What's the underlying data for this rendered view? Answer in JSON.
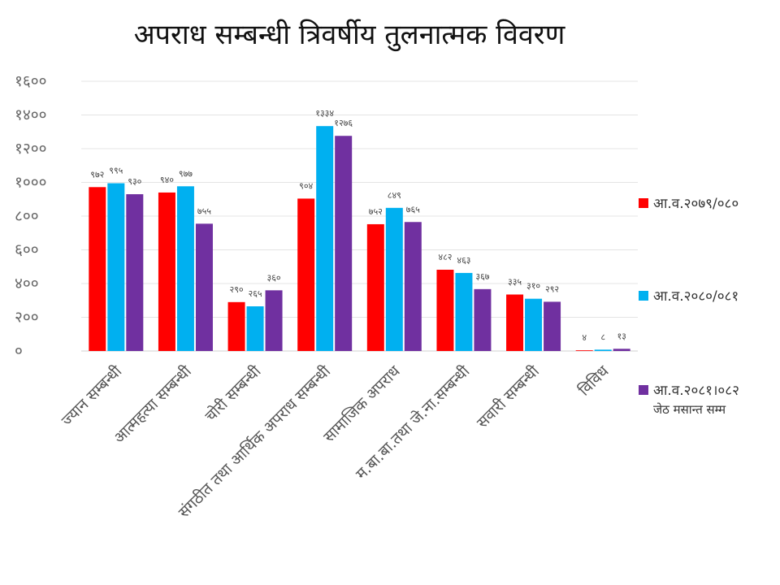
{
  "chart_data": {
    "type": "bar",
    "title": "अपराध सम्बन्धी त्रिवर्षीय तुलनात्मक विवरण",
    "categories": [
      "ज्यान सम्बन्धी",
      "आत्महत्या सम्बन्धी",
      "चोरी सम्बन्धी",
      "संगठीत तथा आर्थिक अपराध सम्बन्धी",
      "सामाजिक अपराध",
      "म.बा.बा.तथा जे.ना.सम्बन्धी",
      "सवारी सम्बन्धी",
      "विविध"
    ],
    "series": [
      {
        "name": "आ.व.२०७९/०८०",
        "color": "#ff0000",
        "values": [
          972,
          940,
          290,
          904,
          752,
          482,
          335,
          4
        ],
        "labels": [
          "९७२",
          "९४०",
          "२९०",
          "९०४",
          "७५२",
          "४८२",
          "३३५",
          "४"
        ]
      },
      {
        "name": "आ.व.२०८०/०८१",
        "color": "#00b0f0",
        "values": [
          995,
          977,
          265,
          1334,
          849,
          463,
          310,
          8
        ],
        "labels": [
          "९९५",
          "९७७",
          "२६५",
          "१३३४",
          "८४९",
          "४६३",
          "३१०",
          "८"
        ]
      },
      {
        "name": "आ.व.२०८१।०८२",
        "name_sub": "जेठ मसान्त सम्म",
        "color": "#7030a0",
        "values": [
          930,
          755,
          360,
          1276,
          765,
          367,
          292,
          13
        ],
        "labels": [
          "९३०",
          "७५५",
          "३६०",
          "१२७६",
          "७६५",
          "३६७",
          "२९२",
          "१३"
        ]
      }
    ],
    "yticks": [
      0,
      200,
      400,
      600,
      800,
      1000,
      1200,
      1400,
      1600
    ],
    "ytick_labels": [
      "०",
      "२००",
      "४००",
      "६००",
      "८००",
      "१०००",
      "१२००",
      "१४००",
      "१६००"
    ],
    "ylim": [
      0,
      1600
    ],
    "grid": true,
    "legend_position": "right"
  }
}
